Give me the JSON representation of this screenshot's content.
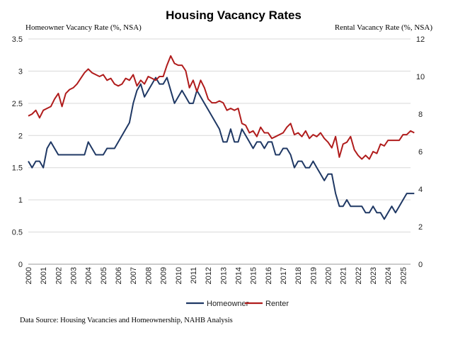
{
  "chart_data": {
    "type": "line",
    "title": "Housing Vacancy Rates",
    "ylabel_left": "Homeowner Vacancy Rate (%, NSA)",
    "ylabel_right": "Rental Vacancy Rate (%, NSA)",
    "source": "Data Source: Housing Vacancies and Homeownership, NAHB Analysis",
    "x_start_year": 2000,
    "x_ticks": [
      "2000",
      "2001",
      "2002",
      "2003",
      "2004",
      "2005",
      "2006",
      "2007",
      "2008",
      "2009",
      "2010",
      "2011",
      "2012",
      "2013",
      "2014",
      "2015",
      "2016",
      "2017",
      "2018",
      "2019",
      "2020",
      "2021",
      "2022",
      "2023",
      "2024",
      "2025"
    ],
    "ylim_left": [
      0,
      3.5
    ],
    "yticks_left": [
      "0",
      "0.5",
      "1",
      "1.5",
      "2",
      "2.5",
      "3",
      "3.5"
    ],
    "ylim_right": [
      0,
      12
    ],
    "yticks_right": [
      "0",
      "2",
      "4",
      "6",
      "8",
      "10",
      "12"
    ],
    "grid": "horizontal",
    "legend_position": "bottom",
    "colors": {
      "homeowner": "#1f3864",
      "renter": "#b01c1c",
      "grid": "#d9d9d9"
    },
    "series": [
      {
        "name": "Homeowner",
        "axis": "left",
        "values": [
          1.6,
          1.5,
          1.6,
          1.6,
          1.5,
          1.8,
          1.9,
          1.8,
          1.7,
          1.7,
          1.7,
          1.7,
          1.7,
          1.7,
          1.7,
          1.7,
          1.9,
          1.8,
          1.7,
          1.7,
          1.7,
          1.8,
          1.8,
          1.8,
          1.9,
          2.0,
          2.1,
          2.2,
          2.5,
          2.7,
          2.8,
          2.6,
          2.7,
          2.8,
          2.9,
          2.8,
          2.8,
          2.9,
          2.7,
          2.5,
          2.6,
          2.7,
          2.6,
          2.5,
          2.5,
          2.7,
          2.6,
          2.5,
          2.4,
          2.3,
          2.2,
          2.1,
          1.9,
          1.9,
          2.1,
          1.9,
          1.9,
          2.1,
          2.0,
          1.9,
          1.8,
          1.9,
          1.9,
          1.8,
          1.9,
          1.9,
          1.7,
          1.7,
          1.8,
          1.8,
          1.7,
          1.5,
          1.6,
          1.6,
          1.5,
          1.5,
          1.6,
          1.5,
          1.4,
          1.3,
          1.4,
          1.4,
          1.1,
          0.9,
          0.9,
          1.0,
          0.9,
          0.9,
          0.9,
          0.9,
          0.8,
          0.8,
          0.9,
          0.8,
          0.8,
          0.7,
          0.8,
          0.9,
          0.8,
          0.9,
          1.0,
          1.1,
          1.1,
          1.1
        ]
      },
      {
        "name": "Renter",
        "axis": "right",
        "values": [
          7.9,
          8.0,
          8.2,
          7.8,
          8.2,
          8.3,
          8.4,
          8.8,
          9.1,
          8.4,
          9.1,
          9.3,
          9.4,
          9.6,
          9.9,
          10.2,
          10.4,
          10.2,
          10.1,
          10.0,
          10.1,
          9.8,
          9.9,
          9.6,
          9.5,
          9.6,
          9.9,
          9.8,
          10.1,
          9.5,
          9.8,
          9.6,
          10.0,
          9.9,
          9.8,
          10.0,
          10.0,
          10.6,
          11.1,
          10.7,
          10.6,
          10.6,
          10.3,
          9.4,
          9.8,
          9.2,
          9.8,
          9.4,
          8.8,
          8.6,
          8.6,
          8.7,
          8.6,
          8.2,
          8.3,
          8.2,
          8.3,
          7.5,
          7.4,
          7.0,
          7.1,
          6.8,
          7.3,
          7.0,
          7.0,
          6.7,
          6.8,
          6.9,
          7.0,
          7.3,
          7.5,
          6.9,
          7.0,
          6.8,
          7.1,
          6.7,
          6.9,
          6.8,
          7.0,
          6.7,
          6.5,
          6.2,
          6.8,
          5.7,
          6.4,
          6.5,
          6.8,
          6.1,
          5.8,
          5.6,
          5.8,
          5.6,
          6.0,
          5.9,
          6.4,
          6.3,
          6.6,
          6.6,
          6.6,
          6.6,
          6.9,
          6.9,
          7.1,
          7.0
        ]
      }
    ]
  }
}
